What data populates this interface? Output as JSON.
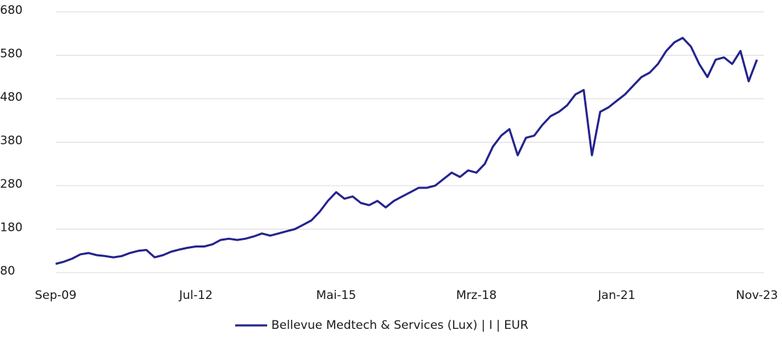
{
  "chart_data": {
    "type": "line",
    "categories": [
      "Sep-09",
      null,
      null,
      null,
      null,
      null,
      null,
      null,
      null,
      null,
      null,
      null,
      null,
      null,
      null,
      null,
      null,
      "Jul-12",
      null,
      null,
      null,
      null,
      null,
      null,
      null,
      null,
      null,
      null,
      null,
      null,
      null,
      null,
      null,
      null,
      "Mai-15",
      null,
      null,
      null,
      null,
      null,
      null,
      null,
      null,
      null,
      null,
      null,
      null,
      null,
      null,
      null,
      null,
      "Mrz-18",
      null,
      null,
      null,
      null,
      null,
      null,
      null,
      null,
      null,
      null,
      null,
      null,
      null,
      null,
      null,
      null,
      "Jan-21",
      null,
      null,
      null,
      null,
      null,
      null,
      null,
      null,
      null,
      null,
      null,
      null,
      null,
      null,
      null,
      null,
      "Nov-23"
    ],
    "series": [
      {
        "name": "Bellevue Medtech & Services (Lux) | I | EUR",
        "color": "#23238e",
        "values": [
          100,
          105,
          112,
          122,
          125,
          120,
          118,
          115,
          118,
          125,
          130,
          132,
          115,
          120,
          128,
          133,
          137,
          140,
          140,
          145,
          155,
          158,
          155,
          158,
          163,
          170,
          165,
          170,
          175,
          180,
          190,
          200,
          220,
          245,
          265,
          250,
          255,
          240,
          235,
          245,
          230,
          245,
          255,
          265,
          275,
          275,
          280,
          295,
          310,
          300,
          315,
          310,
          330,
          370,
          395,
          410,
          350,
          390,
          395,
          420,
          440,
          450,
          465,
          490,
          500,
          350,
          450,
          460,
          475,
          490,
          510,
          530,
          540,
          560,
          590,
          610,
          620,
          600,
          560,
          530,
          570,
          575,
          560,
          590,
          520,
          570
        ]
      }
    ],
    "ylim": [
      80,
      680
    ],
    "yticks": [
      80,
      180,
      280,
      380,
      480,
      580,
      680
    ],
    "grid": true,
    "legend": "bottom"
  }
}
